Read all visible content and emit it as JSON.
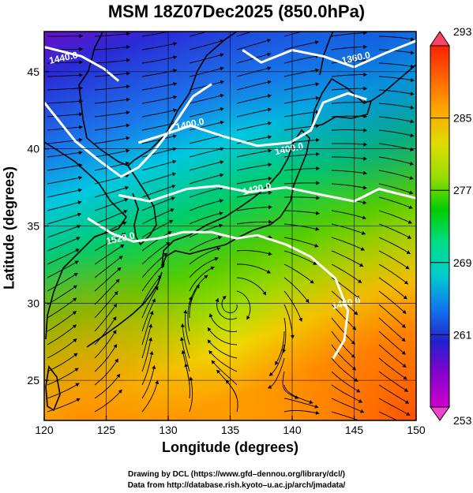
{
  "title": "MSM 18Z07Dec2025 (850.0hPa)",
  "xlabel": "Longitude (degrees)",
  "ylabel": "Latitude  (degrees)",
  "credits": {
    "line1": "Drawing by DCL (https://www.gfd–dennou.org/library/dcl/)",
    "line2": "Data from http://database.rish.kyoto–u.ac.jp/arch/jmadata/"
  },
  "map": {
    "type": "temperature-and-streamline-map",
    "xlim": [
      120,
      150
    ],
    "ylim": [
      22.4,
      47.6
    ],
    "x_ticks": [
      120,
      125,
      130,
      135,
      140,
      145,
      150
    ],
    "x_tick_labels": [
      "120",
      "125",
      "130",
      "135",
      "140",
      "145",
      "150"
    ],
    "y_ticks": [
      25,
      30,
      35,
      40,
      45
    ],
    "y_tick_labels": [
      "25",
      "30",
      "35",
      "40",
      "45"
    ],
    "grid": true,
    "contour_labels": [
      {
        "text": "1440.0",
        "lon": 121.6,
        "lat": 45.7
      },
      {
        "text": "1360.0",
        "lon": 145.2,
        "lat": 45.7
      },
      {
        "text": "1400.0",
        "lon": 131.8,
        "lat": 41.4
      },
      {
        "text": "1400.0",
        "lon": 139.8,
        "lat": 39.8
      },
      {
        "text": "1420.0",
        "lon": 137.2,
        "lat": 37.2
      },
      {
        "text": "1520.0",
        "lon": 126.2,
        "lat": 34.0
      },
      {
        "text": "1460.0",
        "lon": 144.4,
        "lat": 29.8
      }
    ],
    "contours": [
      [
        [
          120,
          46.6
        ],
        [
          123,
          46.0
        ],
        [
          124.8,
          45.2
        ],
        [
          126,
          44.4
        ]
      ],
      [
        [
          136,
          46.4
        ],
        [
          137.5,
          45.6
        ],
        [
          140,
          46.4
        ],
        [
          142.5,
          46.0
        ],
        [
          145,
          45.3
        ],
        [
          147.5,
          46.2
        ],
        [
          150,
          47.0
        ]
      ],
      [
        [
          120,
          43.0
        ],
        [
          122.5,
          40.5
        ],
        [
          124.5,
          39.2
        ],
        [
          126.2,
          38.2
        ],
        [
          127.6,
          38.8
        ],
        [
          129,
          40.0
        ],
        [
          130.5,
          41.6
        ],
        [
          132,
          43.4
        ],
        [
          133.5,
          44.2
        ]
      ],
      [
        [
          127.6,
          40.4
        ],
        [
          129.6,
          40.9
        ],
        [
          131.8,
          41.5
        ],
        [
          134.5,
          40.8
        ],
        [
          137.2,
          40.2
        ],
        [
          139.8,
          40.4
        ],
        [
          141.5,
          41.2
        ],
        [
          142.5,
          43.0
        ],
        [
          144.5,
          43.6
        ],
        [
          146,
          43.2
        ]
      ],
      [
        [
          126,
          37.0
        ],
        [
          128.5,
          36.6
        ],
        [
          131.5,
          37.4
        ],
        [
          134,
          37.6
        ],
        [
          136.5,
          37.2
        ],
        [
          139.5,
          37.5
        ],
        [
          142.5,
          37.0
        ],
        [
          145,
          36.6
        ],
        [
          147,
          37.4
        ],
        [
          150,
          36.8
        ]
      ],
      [
        [
          123.5,
          35.5
        ],
        [
          125.5,
          34.5
        ],
        [
          127.2,
          34.0
        ],
        [
          129.2,
          34.2
        ],
        [
          131.2,
          34.6
        ],
        [
          133.5,
          34.6
        ],
        [
          135.5,
          34.2
        ],
        [
          137.2,
          34.4
        ],
        [
          139.5,
          33.8
        ],
        [
          141.5,
          33.0
        ],
        [
          143.5,
          31.6
        ],
        [
          144.5,
          29.5
        ],
        [
          144.2,
          27.6
        ],
        [
          143.3,
          26.4
        ]
      ]
    ],
    "temperature_colors": [
      "#7f00cc",
      "#2222cc",
      "#1188ee",
      "#00dddd",
      "#00cc66",
      "#66cc00",
      "#ddee00",
      "#ffbb00",
      "#ff5500"
    ],
    "streamline_color": "#000000",
    "colorbar": {
      "ticks": [
        253,
        261,
        269,
        277,
        285,
        293
      ],
      "tick_labels": [
        "253",
        "261",
        "269",
        "277",
        "285",
        "293"
      ],
      "range": [
        253,
        293
      ],
      "colors": [
        "#cc00cc",
        "#8800cc",
        "#2222cc",
        "#1177ee",
        "#00cccc",
        "#00dd88",
        "#00cc00",
        "#99dd00",
        "#dddd00",
        "#ffaa00",
        "#ff6600",
        "#ff2200"
      ]
    }
  }
}
